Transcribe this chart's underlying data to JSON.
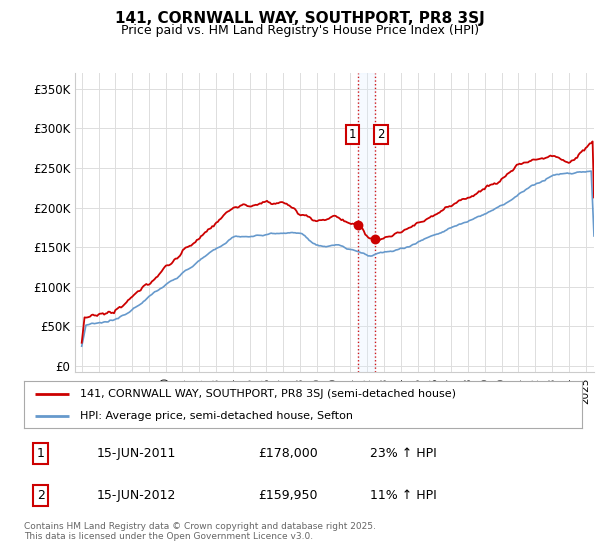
{
  "title": "141, CORNWALL WAY, SOUTHPORT, PR8 3SJ",
  "subtitle": "Price paid vs. HM Land Registry's House Price Index (HPI)",
  "legend_line1": "141, CORNWALL WAY, SOUTHPORT, PR8 3SJ (semi-detached house)",
  "legend_line2": "HPI: Average price, semi-detached house, Sefton",
  "annotation1_label": "1",
  "annotation1_date": "15-JUN-2011",
  "annotation1_price": "£178,000",
  "annotation1_hpi": "23% ↑ HPI",
  "annotation1_year": 2011.46,
  "annotation1_value": 178000,
  "annotation2_label": "2",
  "annotation2_date": "15-JUN-2012",
  "annotation2_price": "£159,950",
  "annotation2_hpi": "11% ↑ HPI",
  "annotation2_year": 2012.46,
  "annotation2_value": 159950,
  "vline_color": "#cc0000",
  "vline_style": ":",
  "red_line_color": "#cc0000",
  "blue_line_color": "#6699cc",
  "dot1_color": "#cc0000",
  "dot2_color": "#cc0000",
  "yticks": [
    0,
    50000,
    100000,
    150000,
    200000,
    250000,
    300000,
    350000
  ],
  "ytick_labels": [
    "£0",
    "£50K",
    "£100K",
    "£150K",
    "£200K",
    "£250K",
    "£300K",
    "£350K"
  ],
  "ylim_min": -8000,
  "ylim_max": 370000,
  "xlim_start": 1994.6,
  "xlim_end": 2025.5,
  "footer": "Contains HM Land Registry data © Crown copyright and database right 2025.\nThis data is licensed under the Open Government Licence v3.0.",
  "background_color": "#ffffff",
  "grid_color": "#dddddd",
  "box_color": "#cc0000",
  "shade_color": "#ddeeff"
}
